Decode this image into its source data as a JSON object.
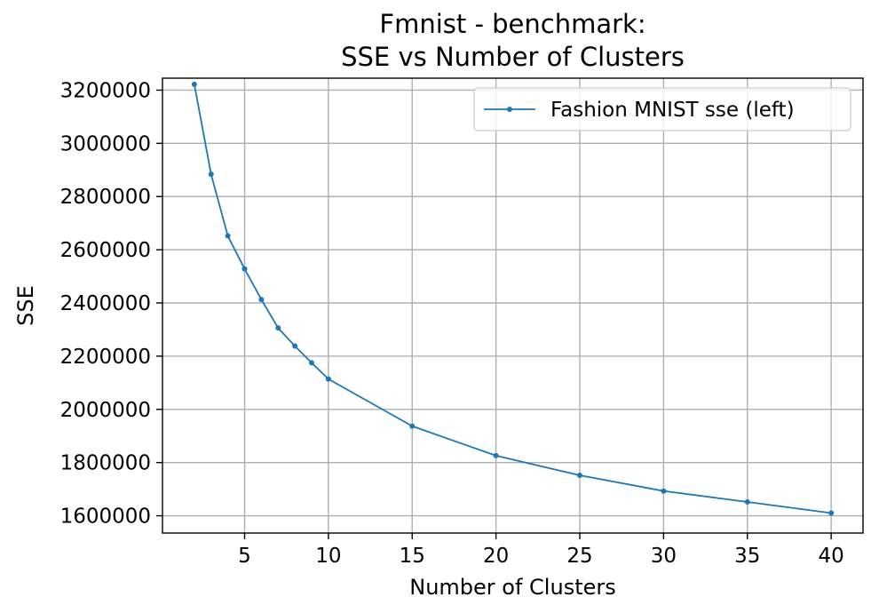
{
  "chart_data": {
    "type": "line",
    "title_lines": [
      "Fmnist - benchmark:",
      "SSE vs Number of Clusters"
    ],
    "xlabel": "Number of Clusters",
    "ylabel": "SSE",
    "xlim": [
      0.1,
      41.9
    ],
    "ylim": [
      1535000,
      3245000
    ],
    "grid": true,
    "legend_position": "top-right",
    "xticks": [
      5,
      10,
      15,
      20,
      25,
      30,
      35,
      40
    ],
    "yticks": [
      1600000,
      1800000,
      2000000,
      2200000,
      2400000,
      2600000,
      2800000,
      3000000,
      3200000
    ],
    "series": [
      {
        "name": "Fashion MNIST sse (left)",
        "color": "#1f77b4",
        "marker": "point",
        "x": [
          2,
          3,
          4,
          5,
          6,
          7,
          8,
          9,
          10,
          15,
          20,
          25,
          30,
          35,
          40
        ],
        "y": [
          3222000,
          2884000,
          2652000,
          2528000,
          2413000,
          2306000,
          2238000,
          2175000,
          2114000,
          1937000,
          1826000,
          1752000,
          1693000,
          1652000,
          1610000
        ]
      }
    ]
  }
}
